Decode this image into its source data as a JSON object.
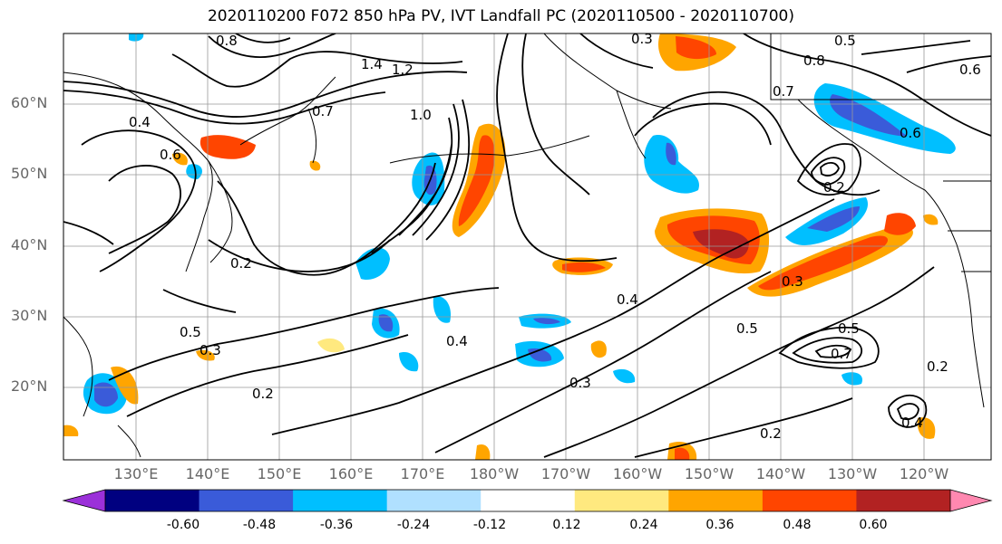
{
  "title": "2020110200 F072 850 hPa PV, IVT Landfall PC (2020110500 - 2020110700)",
  "lat_labels": [
    "60°N",
    "50°N",
    "40°N",
    "30°N",
    "20°N"
  ],
  "lon_labels": [
    "130°E",
    "140°E",
    "150°E",
    "160°E",
    "170°E",
    "180°W",
    "170°W",
    "160°W",
    "150°W",
    "140°W",
    "130°W",
    "120°W"
  ],
  "colorbar": {
    "colors": [
      "#9b30d9",
      "#000080",
      "#3a5bd9",
      "#00bfff",
      "#b0e0ff",
      "#ffffff",
      "#ffe97f",
      "#ffa500",
      "#ff4500",
      "#b22222",
      "#ff88b0"
    ],
    "tick_labels": [
      "-0.60",
      "-0.48",
      "-0.36",
      "-0.24",
      "-0.12",
      "0.12",
      "0.24",
      "0.36",
      "0.48",
      "0.60"
    ]
  },
  "contour_labels": [
    "0.8",
    "1.4",
    "1.2",
    "1.0",
    "0.7",
    "0.4",
    "0.6",
    "0.2",
    "0.5",
    "0.3",
    "0.2",
    "0.4",
    "0.3",
    "0.5",
    "0.8",
    "0.6",
    "0.7",
    "0.6",
    "0.2",
    "0.4",
    "0.3",
    "0.5",
    "0.7",
    "0.4",
    "0.2",
    "0.2",
    "0.5",
    "0.3"
  ]
}
